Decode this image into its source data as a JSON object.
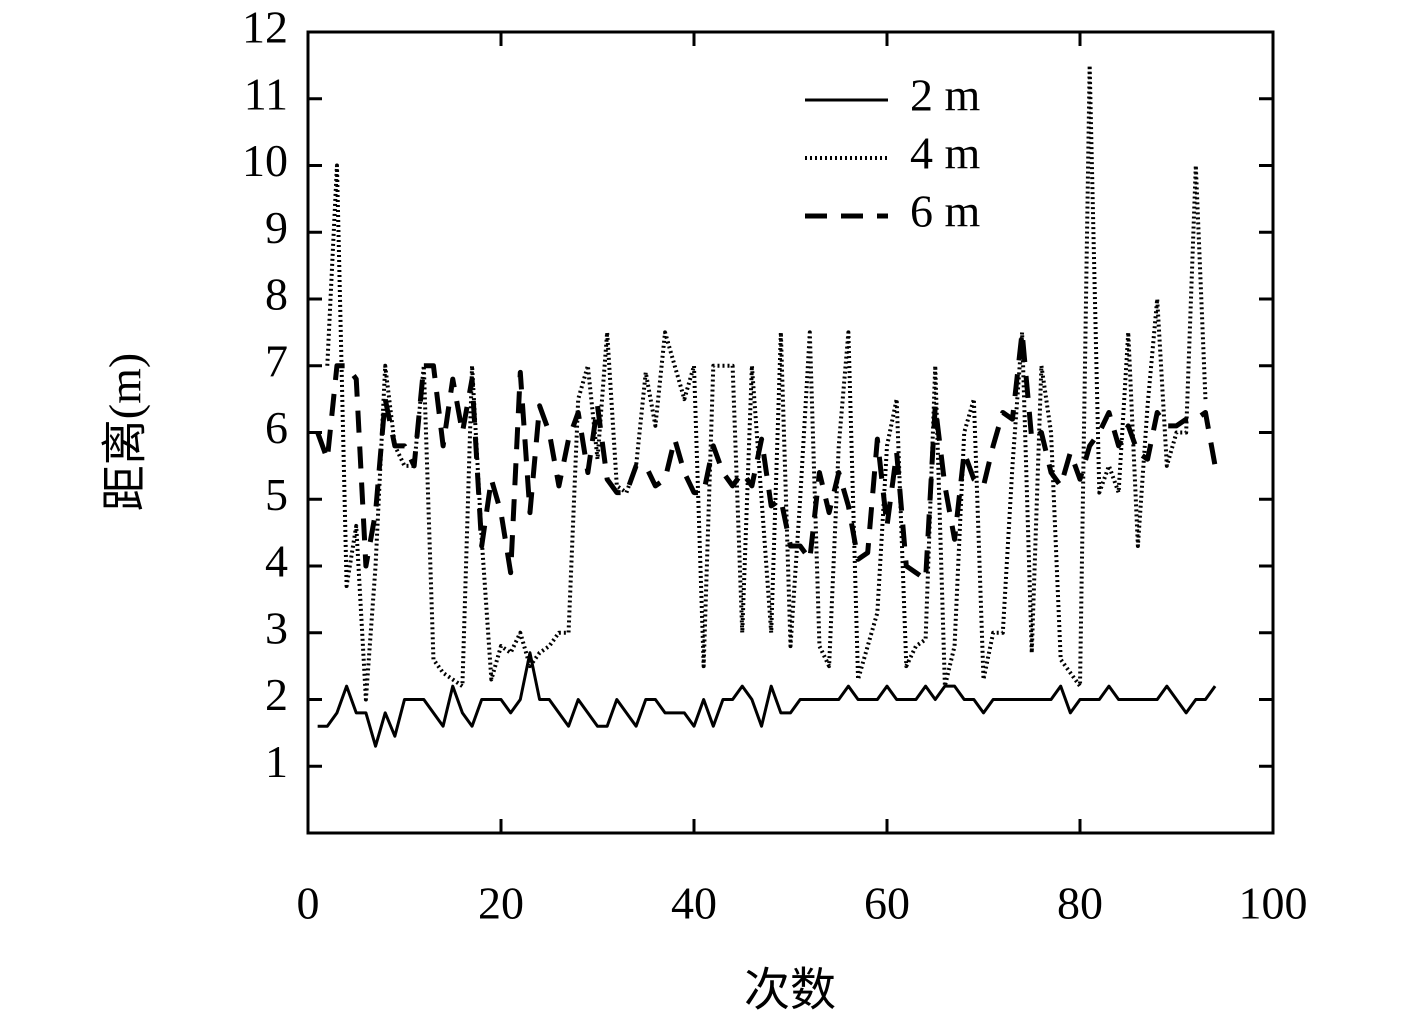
{
  "chart_data": {
    "type": "line",
    "xlabel": "次数",
    "ylabel": "距离(m)",
    "x": [
      1,
      2,
      3,
      4,
      5,
      6,
      7,
      8,
      9,
      10,
      11,
      12,
      13,
      14,
      15,
      16,
      17,
      18,
      19,
      20,
      21,
      22,
      23,
      24,
      25,
      26,
      27,
      28,
      29,
      30,
      31,
      32,
      33,
      34,
      35,
      36,
      37,
      38,
      39,
      40,
      41,
      42,
      43,
      44,
      45,
      46,
      47,
      48,
      49,
      50,
      51,
      52,
      53,
      54,
      55,
      56,
      57,
      58,
      59,
      60,
      61,
      62,
      63,
      64,
      65,
      66,
      67,
      68,
      69,
      70,
      71,
      72,
      73,
      74,
      75,
      76,
      77,
      78,
      79,
      80,
      81,
      82,
      83,
      84,
      85,
      86,
      87,
      88,
      89,
      90,
      91,
      92,
      93,
      94
    ],
    "series": [
      {
        "name": "2 m",
        "color": "#000000",
        "style": "solid",
        "values": [
          1.6,
          1.6,
          1.8,
          2.2,
          1.8,
          1.8,
          1.3,
          1.8,
          1.45,
          2,
          2,
          2,
          1.8,
          1.6,
          2.2,
          1.8,
          1.6,
          2,
          2,
          2,
          1.8,
          2,
          2.7,
          2,
          2,
          1.8,
          1.6,
          2,
          1.8,
          1.6,
          1.6,
          2,
          1.8,
          1.6,
          2,
          2,
          1.8,
          1.8,
          1.8,
          1.6,
          2,
          1.6,
          2,
          2,
          2.2,
          2,
          1.6,
          2.2,
          1.8,
          1.8,
          2,
          2,
          2,
          2,
          2,
          2.2,
          2,
          2,
          2,
          2.2,
          2,
          2,
          2,
          2.2,
          2,
          2.2,
          2.2,
          2,
          2,
          1.8,
          2,
          2,
          2,
          2,
          2,
          2,
          2,
          2.2,
          1.8,
          2,
          2,
          2,
          2.2,
          2,
          2,
          2,
          2,
          2,
          2.2,
          2,
          1.8,
          2,
          2,
          2.2
        ]
      },
      {
        "name": "4 m",
        "color": "#000000",
        "style": "dotted",
        "values": [
          null,
          7,
          10,
          3.7,
          4.6,
          2,
          4,
          7,
          5.8,
          5.5,
          5.5,
          7,
          2.6,
          2.4,
          2.3,
          2.2,
          7,
          4.4,
          2.3,
          2.8,
          2.7,
          3,
          2.5,
          2.7,
          2.8,
          3,
          3,
          6.5,
          7,
          5.6,
          7.5,
          5.2,
          5.1,
          5.5,
          6.9,
          6.1,
          7.5,
          7,
          6.5,
          7,
          2.5,
          7,
          7,
          7,
          3,
          7,
          5,
          3,
          7.5,
          2.8,
          5,
          7.5,
          2.8,
          2.5,
          5.8,
          7.5,
          2.3,
          2.8,
          3.3,
          5.8,
          6.5,
          2.5,
          2.8,
          2.9,
          7,
          2.2,
          2.8,
          6,
          6.5,
          2.3,
          3,
          3,
          5.5,
          7.5,
          2.7,
          7,
          6,
          2.6,
          2.4,
          2.2,
          11.5,
          5.1,
          5.5,
          5.1,
          7.5,
          4.3,
          6.4,
          8,
          5.5,
          6,
          6,
          10,
          6.5,
          null
        ]
      },
      {
        "name": "6 m",
        "color": "#000000",
        "style": "dashed",
        "values": [
          6,
          5.6,
          7,
          7,
          6.8,
          4,
          4.8,
          6.5,
          5.8,
          5.8,
          5.5,
          7,
          7,
          5.8,
          6.8,
          6,
          6.8,
          4.3,
          5.3,
          4.8,
          3.9,
          6.9,
          4.8,
          6.4,
          6,
          5.2,
          5.9,
          6.3,
          5.4,
          6.4,
          5.3,
          5.1,
          5.1,
          5.5,
          5.5,
          5.2,
          5.3,
          5.9,
          5.4,
          5.1,
          5.1,
          5.8,
          5.4,
          5.2,
          5.4,
          5.2,
          5.9,
          4.9,
          5,
          4.3,
          4.3,
          4.1,
          5.4,
          4.8,
          5.4,
          4.9,
          4.1,
          4.2,
          5.9,
          4.6,
          5.7,
          4,
          3.9,
          3.8,
          6.4,
          5.2,
          4.4,
          5.7,
          5.3,
          5.2,
          5.8,
          6.3,
          6.2,
          7.5,
          5.9,
          6,
          5.4,
          5.2,
          5.7,
          5.3,
          5.8,
          6,
          6.3,
          5.8,
          6.1,
          5.7,
          5.6,
          6.3,
          6.1,
          6.1,
          6.2,
          6.2,
          6.3,
          5.5
        ]
      }
    ],
    "xlim": [
      0,
      100
    ],
    "xticks": [
      0,
      20,
      40,
      60,
      80,
      100
    ],
    "ylim": [
      0,
      12
    ],
    "yticks": [
      1,
      2,
      3,
      4,
      5,
      6,
      7,
      8,
      9,
      10,
      11,
      12
    ],
    "grid": false,
    "legend": "upper right"
  }
}
